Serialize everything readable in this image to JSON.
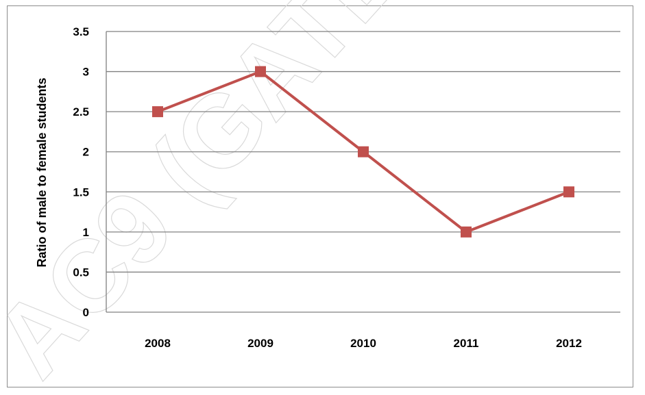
{
  "chart_data": {
    "type": "line",
    "categories": [
      "2008",
      "2009",
      "2010",
      "2011",
      "2012"
    ],
    "series": [
      {
        "values": [
          2.5,
          3,
          2,
          1,
          1.5
        ],
        "color": "#c0504d"
      }
    ],
    "ylabel": "Ratio of male to female students",
    "xlabel": "",
    "ylim": [
      0,
      3.5
    ],
    "yticks": [
      "0",
      "0.5",
      "1",
      "1.5",
      "2",
      "2.5",
      "3",
      "3.5"
    ],
    "grid": true,
    "marker": "square"
  },
  "watermark": {
    "text": "AC9 (GATE"
  }
}
